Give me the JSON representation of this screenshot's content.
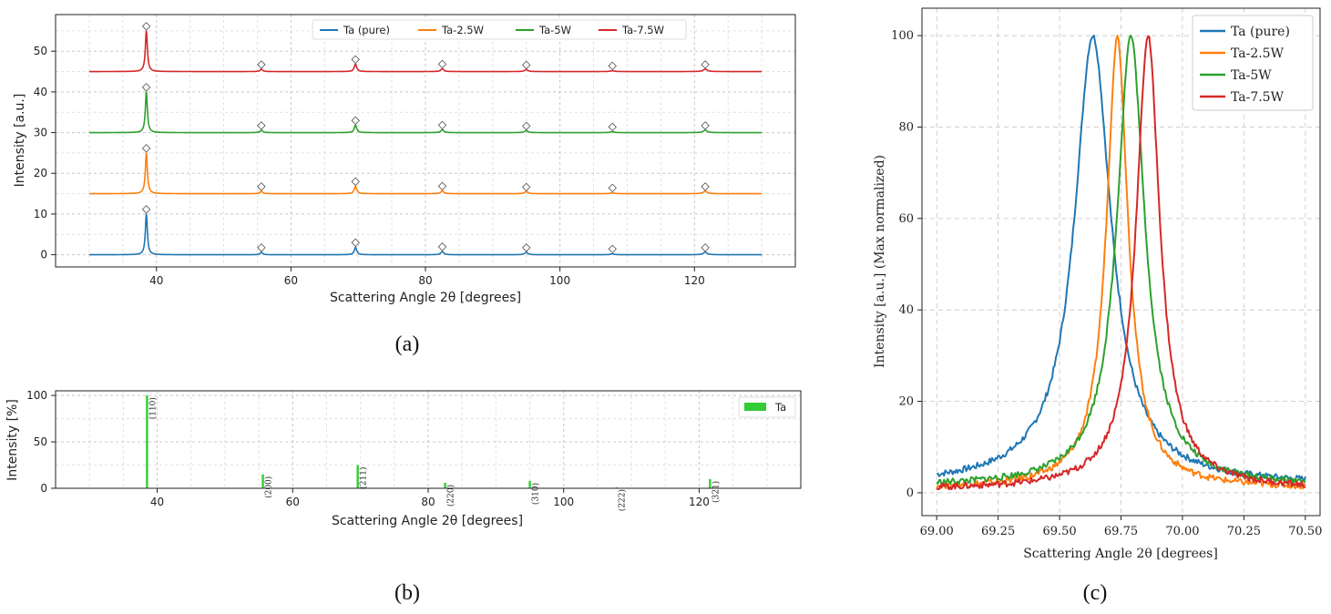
{
  "chart_data": [
    {
      "type": "line",
      "panel_label": "(a)",
      "xlabel": "Scattering Angle 2θ [degrees]",
      "ylabel": "Intensity [a.u.]",
      "xlim": [
        25,
        135
      ],
      "ylim": [
        -3,
        59
      ],
      "xticks": [
        40,
        60,
        80,
        100,
        120
      ],
      "yticks": [
        0,
        10,
        20,
        30,
        40,
        50
      ],
      "grid": true,
      "legend_position": "top-center",
      "x_range": [
        30,
        130
      ],
      "peak_positions": [
        38.5,
        55.6,
        69.6,
        82.5,
        95.0,
        107.8,
        121.6
      ],
      "peak_marker": "◇",
      "series": [
        {
          "name": "Ta (pure)",
          "color": "#1f77b4",
          "offset": 0,
          "peak_heights": [
            10,
            0.6,
            1.8,
            0.8,
            0.6,
            0.2,
            0.6
          ]
        },
        {
          "name": "Ta-2.5W",
          "color": "#ff7f0e",
          "offset": 15,
          "peak_heights": [
            10,
            0.6,
            1.8,
            0.7,
            0.5,
            0.2,
            0.6
          ]
        },
        {
          "name": "Ta-5W",
          "color": "#2ca02c",
          "offset": 30,
          "peak_heights": [
            10,
            0.6,
            1.8,
            0.7,
            0.5,
            0.2,
            0.6
          ]
        },
        {
          "name": "Ta-7.5W",
          "color": "#d62728",
          "offset": 45,
          "peak_heights": [
            10,
            0.6,
            1.8,
            0.7,
            0.5,
            0.2,
            0.6
          ]
        }
      ]
    },
    {
      "type": "bar",
      "panel_label": "(b)",
      "xlabel": "Scattering Angle 2θ [degrees]",
      "ylabel": "Intensity [%]",
      "xlim": [
        25,
        135
      ],
      "ylim": [
        0,
        105
      ],
      "xticks": [
        40,
        60,
        80,
        100,
        120
      ],
      "yticks": [
        0,
        50,
        100
      ],
      "grid": true,
      "legend_position": "top-right",
      "series": [
        {
          "name": "Ta",
          "color": "#33cc33"
        }
      ],
      "x": [
        38.5,
        55.6,
        69.6,
        82.5,
        95.0,
        107.8,
        121.6
      ],
      "values": [
        100,
        15,
        25,
        6,
        8,
        1,
        10
      ],
      "labels": [
        "(110)",
        "(200)",
        "(211)",
        "(220)",
        "(310)",
        "(222)",
        "(321)"
      ]
    },
    {
      "type": "line",
      "panel_label": "(c)",
      "xlabel": "Scattering Angle 2θ [degrees]",
      "ylabel": "Intensity [a.u.] (Max normalized)",
      "xlim": [
        68.94,
        70.56
      ],
      "ylim": [
        -5,
        106
      ],
      "xticks": [
        "69.00",
        "69.25",
        "69.50",
        "69.75",
        "70.00",
        "70.25",
        "70.50"
      ],
      "yticks": [
        0,
        20,
        40,
        60,
        80,
        100
      ],
      "grid": true,
      "legend_position": "top-right",
      "series": [
        {
          "name": "Ta (pure)",
          "color": "#1f77b4",
          "peak_x": 69.635,
          "peak_y": 100,
          "baseline": 1.5
        },
        {
          "name": "Ta-2.5W",
          "color": "#ff7f0e",
          "peak_x": 69.735,
          "peak_y": 100,
          "baseline": 0.8
        },
        {
          "name": "Ta-5W",
          "color": "#2ca02c",
          "peak_x": 69.79,
          "peak_y": 100,
          "baseline": 1.2
        },
        {
          "name": "Ta-7.5W",
          "color": "#d62728",
          "peak_x": 69.86,
          "peak_y": 100,
          "baseline": 0.6
        }
      ]
    }
  ]
}
